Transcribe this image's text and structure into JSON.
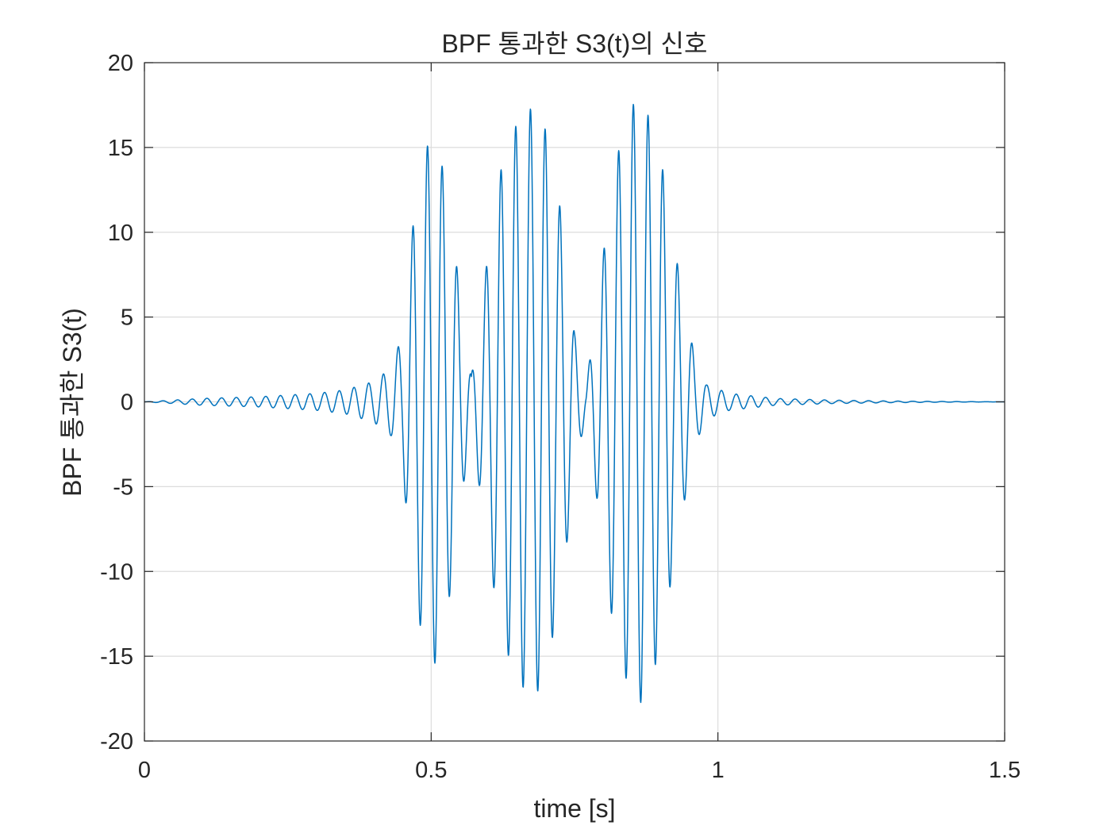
{
  "chart_data": {
    "type": "line",
    "title": "BPF 통과한 S3(t)의 신호",
    "xlabel": "time [s]",
    "ylabel": "BPF 통과한 S3(t)",
    "xlim": [
      0,
      1.5
    ],
    "ylim": [
      -20,
      20
    ],
    "x_ticks": [
      0,
      0.5,
      1,
      1.5
    ],
    "x_tick_labels": [
      "0",
      "0.5",
      "1",
      "1.5"
    ],
    "y_ticks": [
      20,
      15,
      10,
      5,
      0,
      -5,
      -10,
      -15,
      -20
    ],
    "y_tick_labels": [
      "20",
      "15",
      "10",
      "5",
      "0",
      "-5",
      "-10",
      "-15",
      "-20"
    ],
    "grid": true,
    "line_color": "#0072BD",
    "series": [
      {
        "sampled_envelope": [
          {
            "t": 0.0,
            "amp": 0.0
          },
          {
            "t": 0.1,
            "amp": 0.2
          },
          {
            "t": 0.2,
            "amp": 0.3
          },
          {
            "t": 0.3,
            "amp": 0.5
          },
          {
            "t": 0.35,
            "amp": 0.7
          },
          {
            "t": 0.4,
            "amp": 1.2
          },
          {
            "t": 0.43,
            "amp": 2.0
          },
          {
            "t": 0.45,
            "amp": 4.0
          },
          {
            "t": 0.47,
            "amp": 11.0
          },
          {
            "t": 0.49,
            "amp": 15.0
          },
          {
            "t": 0.51,
            "amp": 15.5
          },
          {
            "t": 0.53,
            "amp": 12.0
          },
          {
            "t": 0.55,
            "amp": 6.5
          },
          {
            "t": 0.57,
            "amp": 1.5
          },
          {
            "t": 0.59,
            "amp": 6.5
          },
          {
            "t": 0.62,
            "amp": 13.5
          },
          {
            "t": 0.65,
            "amp": 16.5
          },
          {
            "t": 0.68,
            "amp": 17.5
          },
          {
            "t": 0.7,
            "amp": 16.0
          },
          {
            "t": 0.73,
            "amp": 10.5
          },
          {
            "t": 0.75,
            "amp": 4.0
          },
          {
            "t": 0.77,
            "amp": 0.8
          },
          {
            "t": 0.79,
            "amp": 6.0
          },
          {
            "t": 0.82,
            "amp": 14.0
          },
          {
            "t": 0.85,
            "amp": 17.5
          },
          {
            "t": 0.87,
            "amp": 17.8
          },
          {
            "t": 0.9,
            "amp": 14.5
          },
          {
            "t": 0.93,
            "amp": 8.0
          },
          {
            "t": 0.96,
            "amp": 2.5
          },
          {
            "t": 0.98,
            "amp": 1.0
          },
          {
            "t": 1.02,
            "amp": 0.5
          },
          {
            "t": 1.1,
            "amp": 0.2
          },
          {
            "t": 1.2,
            "amp": 0.1
          },
          {
            "t": 1.3,
            "amp": 0.05
          },
          {
            "t": 1.4,
            "amp": 0.02
          },
          {
            "t": 1.5,
            "amp": 0.0
          }
        ],
        "oscillation_hz": 39
      }
    ]
  }
}
